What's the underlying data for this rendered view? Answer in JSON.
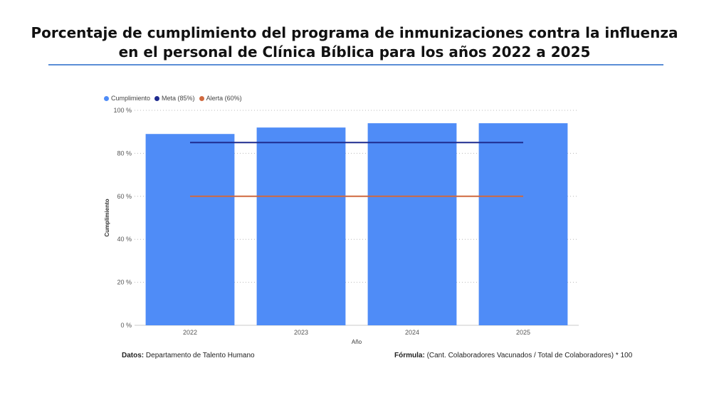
{
  "title": "Porcentaje de cumplimiento del programa de inmunizaciones contra la influenza en el personal de Clínica Bíblica para los años 2022 a 2025",
  "legend": [
    {
      "label": "Cumplimiento",
      "color": "#4f8cf7"
    },
    {
      "label": "Meta (85%)",
      "color": "#1f2b8f"
    },
    {
      "label": "Alerta (60%)",
      "color": "#d0693f"
    }
  ],
  "footer": {
    "source_label": "Datos:",
    "source_text": "Departamento de Talento Humano",
    "formula_label": "Fórmula:",
    "formula_text": "(Cant. Colaboradores Vacunados / Total de Colaboradores) * 100"
  },
  "chart_data": {
    "type": "bar",
    "categories": [
      "2022",
      "2023",
      "2024",
      "2025"
    ],
    "series": [
      {
        "name": "Cumplimiento",
        "type": "bar",
        "color": "#4f8cf7",
        "values": [
          89,
          92,
          94,
          94
        ]
      },
      {
        "name": "Meta (85%)",
        "type": "line",
        "color": "#1f2b8f",
        "values": [
          85,
          85,
          85,
          85
        ]
      },
      {
        "name": "Alerta (60%)",
        "type": "line",
        "color": "#d0693f",
        "values": [
          60,
          60,
          60,
          60
        ]
      }
    ],
    "xlabel": "Año",
    "ylabel": "Cumplimiento",
    "ylim": [
      0,
      100
    ],
    "yticks": [
      "0 %",
      "20 %",
      "40 %",
      "60 %",
      "80 %",
      "100 %"
    ],
    "grid": true,
    "legend_position": "top-left"
  }
}
